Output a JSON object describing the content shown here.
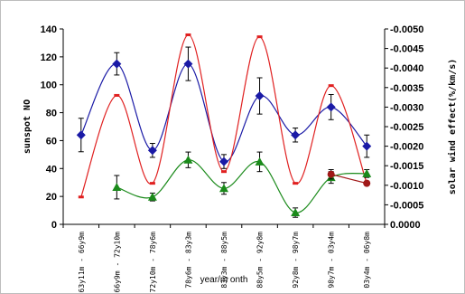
{
  "chart_data": {
    "type": "line",
    "title": "",
    "xlabel": "year/m onth",
    "ylabel": "sunspot NO",
    "y2label": "solar wind effect(%/km/s)",
    "categories": [
      "63y11m - 66y9m",
      "66y9m - 72y10m",
      "72y10m - 78y6m",
      "78y6m - 83y3m",
      "83y3m - 88y5m",
      "88y5m - 92y8m",
      "92y8m - 98y7m",
      "98y7m - 03y4m",
      "03y4m - 06y8m"
    ],
    "ylim": [
      0,
      140
    ],
    "yticks": [
      "0",
      "20",
      "40",
      "60",
      "80",
      "100",
      "120",
      "140"
    ],
    "y2lim": [
      0,
      -0.005
    ],
    "y2ticks": [
      "0.0000",
      "-0.0005",
      "-0.0010",
      "-0.0015",
      "-0.0020",
      "-0.0025",
      "-0.0030",
      "-0.0035",
      "-0.0040",
      "-0.0045",
      "-0.0050"
    ],
    "series": [
      {
        "axis": "left",
        "marker": "diamond",
        "color": "#1a1aa6",
        "values": [
          64,
          115,
          53,
          115,
          45,
          92,
          64,
          84,
          56
        ],
        "errors": [
          12,
          8,
          5,
          12,
          5,
          13,
          5,
          9,
          8
        ]
      },
      {
        "axis": "right",
        "marker": "dash",
        "color": "#e02020",
        "values": [
          -0.0007,
          -0.0033,
          -0.00105,
          -0.00485,
          -0.00135,
          -0.0048,
          -0.00105,
          -0.00355,
          -0.00105
        ],
        "errors": [
          0,
          0,
          0,
          0,
          0,
          0,
          0,
          0,
          0
        ]
      },
      {
        "axis": "right",
        "marker": "triangle",
        "color": "#1a8a1a",
        "values": [
          null,
          -0.00095,
          -0.0007,
          -0.00165,
          -0.00092,
          -0.0016,
          -0.0003,
          -0.0012,
          -0.0013
        ],
        "errors": [
          0,
          0.0003,
          0.0001,
          0.0002,
          0.00015,
          0.00025,
          0.00012,
          0.00015,
          0.0001
        ]
      },
      {
        "axis": "right",
        "marker": "circle",
        "color": "#a01818",
        "values": [
          null,
          null,
          null,
          null,
          null,
          null,
          null,
          -0.00128,
          -0.00105
        ],
        "errors": [
          0,
          0,
          0,
          0,
          0,
          0,
          0,
          0.00012,
          0
        ]
      }
    ]
  }
}
